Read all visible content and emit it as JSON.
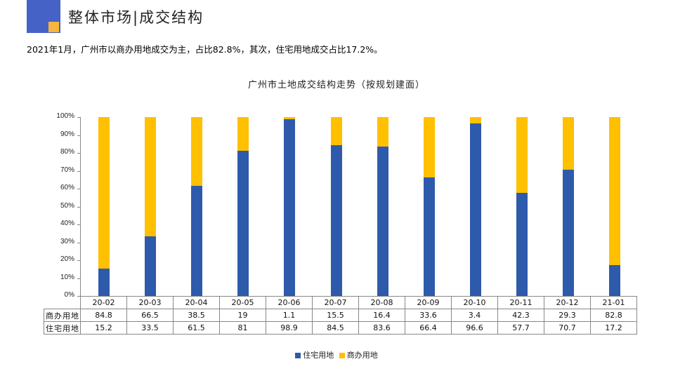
{
  "header": {
    "title": "整体市场|成交结构",
    "logo_colors": {
      "outer": "#4563C7",
      "inner": "#F7B53B"
    }
  },
  "summary": "2021年1月，广州市以商办用地成交为主，占比82.8%，其次，住宅用地成交占比17.2%。",
  "chart_data": {
    "type": "bar",
    "stacked": true,
    "percent_stacked": true,
    "title": "广州市土地成交结构走势（按规划建面）",
    "xlabel": "",
    "ylabel": "",
    "ylim": [
      0,
      100
    ],
    "y_ticks": [
      "0%",
      "10%",
      "20%",
      "30%",
      "40%",
      "50%",
      "60%",
      "70%",
      "80%",
      "90%",
      "100%"
    ],
    "categories": [
      "20-02",
      "20-03",
      "20-04",
      "20-05",
      "20-06",
      "20-07",
      "20-08",
      "20-09",
      "20-10",
      "20-11",
      "20-12",
      "21-01"
    ],
    "series": [
      {
        "name": "住宅用地",
        "color": "#2E5AAC",
        "values": [
          15.2,
          33.5,
          61.5,
          81,
          98.9,
          84.5,
          83.6,
          66.4,
          96.6,
          57.7,
          70.7,
          17.2
        ],
        "labels": [
          "15.2",
          "33.5",
          "61.5",
          "81",
          "98.9",
          "84.5",
          "83.6",
          "66.4",
          "96.6",
          "57.7",
          "70.7",
          "17.2"
        ]
      },
      {
        "name": "商办用地",
        "color": "#FFC000",
        "values": [
          84.8,
          66.5,
          38.5,
          19,
          1.1,
          15.5,
          16.4,
          33.6,
          3.4,
          42.3,
          29.3,
          82.8
        ],
        "labels": [
          "84.8",
          "66.5",
          "38.5",
          "19",
          "1.1",
          "15.5",
          "16.4",
          "33.6",
          "3.4",
          "42.3",
          "29.3",
          "82.8"
        ]
      }
    ],
    "data_table_rows": [
      "商办用地",
      "住宅用地"
    ],
    "legend": [
      "住宅用地",
      "商办用地"
    ],
    "legend_position": "bottom",
    "grid": false
  }
}
